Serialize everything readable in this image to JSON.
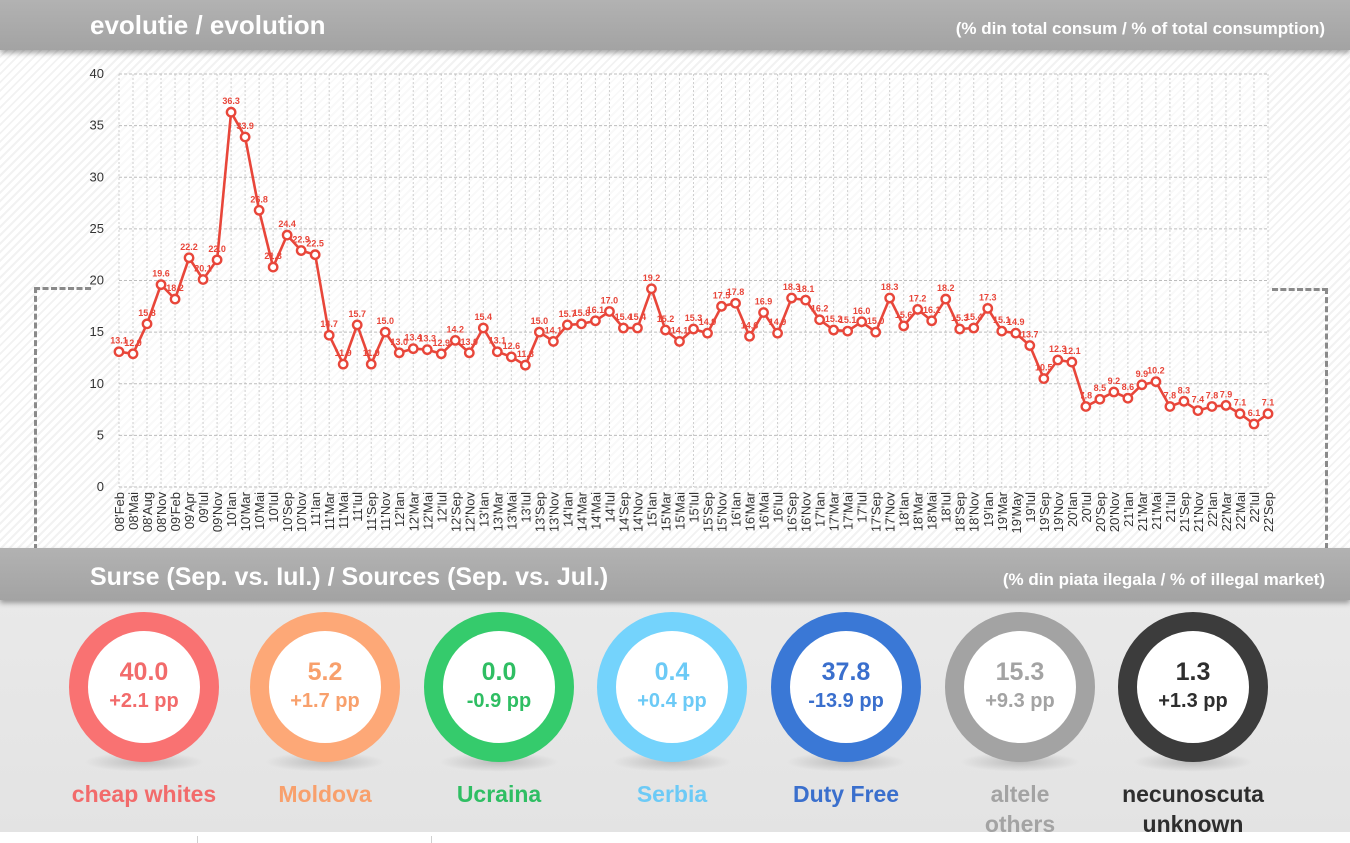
{
  "header": {
    "title": "evolutie / evolution",
    "subtitle": "(% din total consum / % of total consumption)"
  },
  "sources_header": {
    "title": "Surse (Sep. vs. Iul.) / Sources (Sep. vs. Jul.)",
    "subtitle": "(% din piata ilegala / % of illegal market)"
  },
  "chart_data": {
    "type": "line",
    "x": [
      "08'Feb",
      "08'Mai",
      "08'Aug",
      "08'Nov",
      "09'Feb",
      "09'Apr",
      "09'Iul",
      "09'Nov",
      "10'Ian",
      "10'Mar",
      "10'Mai",
      "10'Iul",
      "10'Sep",
      "10'Nov",
      "11'Ian",
      "11'Mar",
      "11'Mai",
      "11'Iul",
      "11'Sep",
      "11'Nov",
      "12'Ian",
      "12'Mar",
      "12'Mai",
      "12'Iul",
      "12'Sep",
      "12'Nov",
      "13'Ian",
      "13'Mar",
      "13'Mai",
      "13'Iul",
      "13'Sep",
      "13'Nov",
      "14'Ian",
      "14'Mar",
      "14'Mai",
      "14'Iul",
      "14'Sep",
      "14'Nov",
      "15'Ian",
      "15'Mar",
      "15'Mai",
      "15'Iul",
      "15'Sep",
      "15'Nov",
      "16'Ian",
      "16'Mar",
      "16'Mai",
      "16'Iul",
      "16'Sep",
      "16'Nov",
      "17'Ian",
      "17'Mar",
      "17'Mai",
      "17'Iul",
      "17'Sep",
      "17'Nov",
      "18'Ian",
      "18'Mar",
      "18'Mai",
      "18'Iul",
      "18'Sep",
      "18'Nov",
      "19'Ian",
      "19'Mar",
      "19'May",
      "19'Iul",
      "19'Sep",
      "19'Nov",
      "20'Ian",
      "20'Iul",
      "20'Sep",
      "20'Nov",
      "21'Ian",
      "21'Mar",
      "21'Mai",
      "21'Iul",
      "21'Sep",
      "21'Nov",
      "22'Ian",
      "22'Mar",
      "22'Mai",
      "22'Iul",
      "22'Sep"
    ],
    "tick_labels": [
      "08'Feb",
      "08'Mai",
      "08'Aug",
      "08'Nov",
      "09'Feb",
      "09'Apr",
      "09'Iul",
      "09'Nov",
      "10'Ian",
      "10'Mar",
      "10'Mai",
      "10'Iul",
      "10'Sep",
      "10'Nov",
      "11'Ian",
      "11'Mar",
      "11'Mai",
      "11'Iul",
      "11'Sep",
      "11'Nov",
      "12'Ian",
      "12'Mar",
      "12'Mai",
      "12'Iul",
      "12'Sep",
      "12'Nov",
      "13'Ian",
      "13'Mar",
      "13'Mai",
      "13'Iul",
      "13'Sep",
      "13'Nov",
      "14'Ian",
      "14'Mar",
      "14'Mai",
      "14'Iul",
      "14'Sep",
      "14'Nov",
      "15'Ian",
      "15'Mar",
      "15'Mai",
      "15'Iul",
      "15'Sep",
      "15'Nov",
      "16'Ian",
      "16'Mar",
      "16'Mai",
      "16'Iul",
      "16'Sep",
      "16'Nov",
      "17'Ian",
      "17'Mar",
      "17'Mai",
      "17'Iul",
      "17'Sep",
      "17'Nov",
      "18'Ian",
      "18'Mar",
      "18'Mai",
      "18'Iul",
      "18'Sep",
      "18'Nov",
      "19'Ian",
      "19'Mar",
      "19'May",
      "19'Iul",
      "19'Sep",
      "19'Nov",
      "20'Ian",
      "20'Iul",
      "20'Sep",
      "20'Nov",
      "21'Ian",
      "21'Mar",
      "21'Mai",
      "21'Iul",
      "21'Sep",
      "21'Nov",
      "22'Ian",
      "22'Mar",
      "22'Mai",
      "22'Iul",
      "22'Sep"
    ],
    "series": [
      {
        "values": [
          13.1,
          12.9,
          15.8,
          19.6,
          18.2,
          22.2,
          20.1,
          22.0,
          36.3,
          33.9,
          26.8,
          21.3,
          24.4,
          22.9,
          22.5,
          14.7,
          11.9,
          15.7,
          11.9,
          15.0,
          13.0,
          13.4,
          13.3,
          12.9,
          14.2,
          13.0,
          15.4,
          13.1,
          12.6,
          11.8,
          15.0,
          14.1,
          15.7,
          15.8,
          16.1,
          17.0,
          15.4,
          15.4,
          19.2,
          15.2,
          14.1,
          15.3,
          14.9,
          17.5,
          17.8,
          14.6,
          16.9,
          14.9,
          18.3,
          18.1,
          16.2,
          15.2,
          15.1,
          16.0,
          15.0,
          18.3,
          15.6,
          17.2,
          16.1,
          18.2,
          15.3,
          15.4,
          17.3,
          15.1,
          14.9,
          13.7,
          10.5,
          12.3,
          12.1,
          7.8,
          8.5,
          9.2,
          8.6,
          9.9,
          10.2,
          7.8,
          8.3,
          7.4,
          7.8,
          7.9,
          7.1,
          6.1,
          7.1
        ],
        "labels": [
          "13.1",
          "12.9",
          "15.8",
          "19.6",
          "18.2",
          "22.2",
          "20.1",
          "22.0",
          "36.3",
          "33.9",
          "26.8",
          "21.3",
          "24.4",
          "22.9",
          "22.5",
          "14.7",
          "11.9",
          "15.7",
          "11.9",
          "15.0",
          "13.0",
          "13.4",
          "13.3",
          "12.9",
          "14.2",
          "13.0",
          "15.4",
          "13.1",
          "12.6",
          "11.8",
          "15.0",
          "14.1",
          "15.7",
          "15.8",
          "16.1",
          "17.0",
          "15.4",
          "15.4",
          "19.2",
          "15.2",
          "14.1",
          "15.3",
          "14.9",
          "17.5",
          "17.8",
          "14.6",
          "16.9",
          "14.9",
          "18.3",
          "18.1",
          "16.2",
          "15.2",
          "15.1",
          "16.0",
          "15.0",
          "18.3",
          "15.6",
          "17.2",
          "16.1",
          "18.2",
          "15.3",
          "15.4",
          "17.3",
          "15.1",
          "14.9",
          "13.7",
          "10.5",
          "12.3",
          "12.1",
          "7.8",
          "8.5",
          "9.2",
          "8.6",
          "9.9",
          "10.2",
          "7.8",
          "8.3",
          "7.4",
          "7.8",
          "7.9",
          "7.1",
          "6.1",
          "7.1"
        ]
      }
    ],
    "ylim": [
      0,
      40
    ],
    "yticks": [
      "0",
      "5",
      "10",
      "15",
      "20",
      "25",
      "30",
      "35",
      "40"
    ],
    "grid": true,
    "line_color": "#e8463a"
  },
  "sources": [
    {
      "value": "40.0",
      "change": "+2.1 pp",
      "label": [
        "cheap whites"
      ],
      "ring": "#f97272",
      "color": "#f26b6b"
    },
    {
      "value": "5.2",
      "change": "+1.7 pp",
      "label": [
        "Moldova"
      ],
      "ring": "#fda877",
      "color": "#f8a06c"
    },
    {
      "value": "0.0",
      "change": "-0.9 pp",
      "label": [
        "Ucraina"
      ],
      "ring": "#35cb6c",
      "color": "#2fbe63"
    },
    {
      "value": "0.4",
      "change": "+0.4 pp",
      "label": [
        "Serbia"
      ],
      "ring": "#74d3fc",
      "color": "#6ccaf6"
    },
    {
      "value": "37.8",
      "change": "-13.9 pp",
      "label": [
        "Duty Free"
      ],
      "ring": "#3a78d6",
      "color": "#3a6fcd"
    },
    {
      "value": "15.3",
      "change": "+9.3 pp",
      "label": [
        "altele",
        "others"
      ],
      "ring": "#a3a3a3",
      "color": "#a3a3a3"
    },
    {
      "value": "1.3",
      "change": "+1.3 pp",
      "label": [
        "necunoscuta",
        "unknown"
      ],
      "ring": "#3c3c3c",
      "color": "#2e2e2e"
    }
  ]
}
